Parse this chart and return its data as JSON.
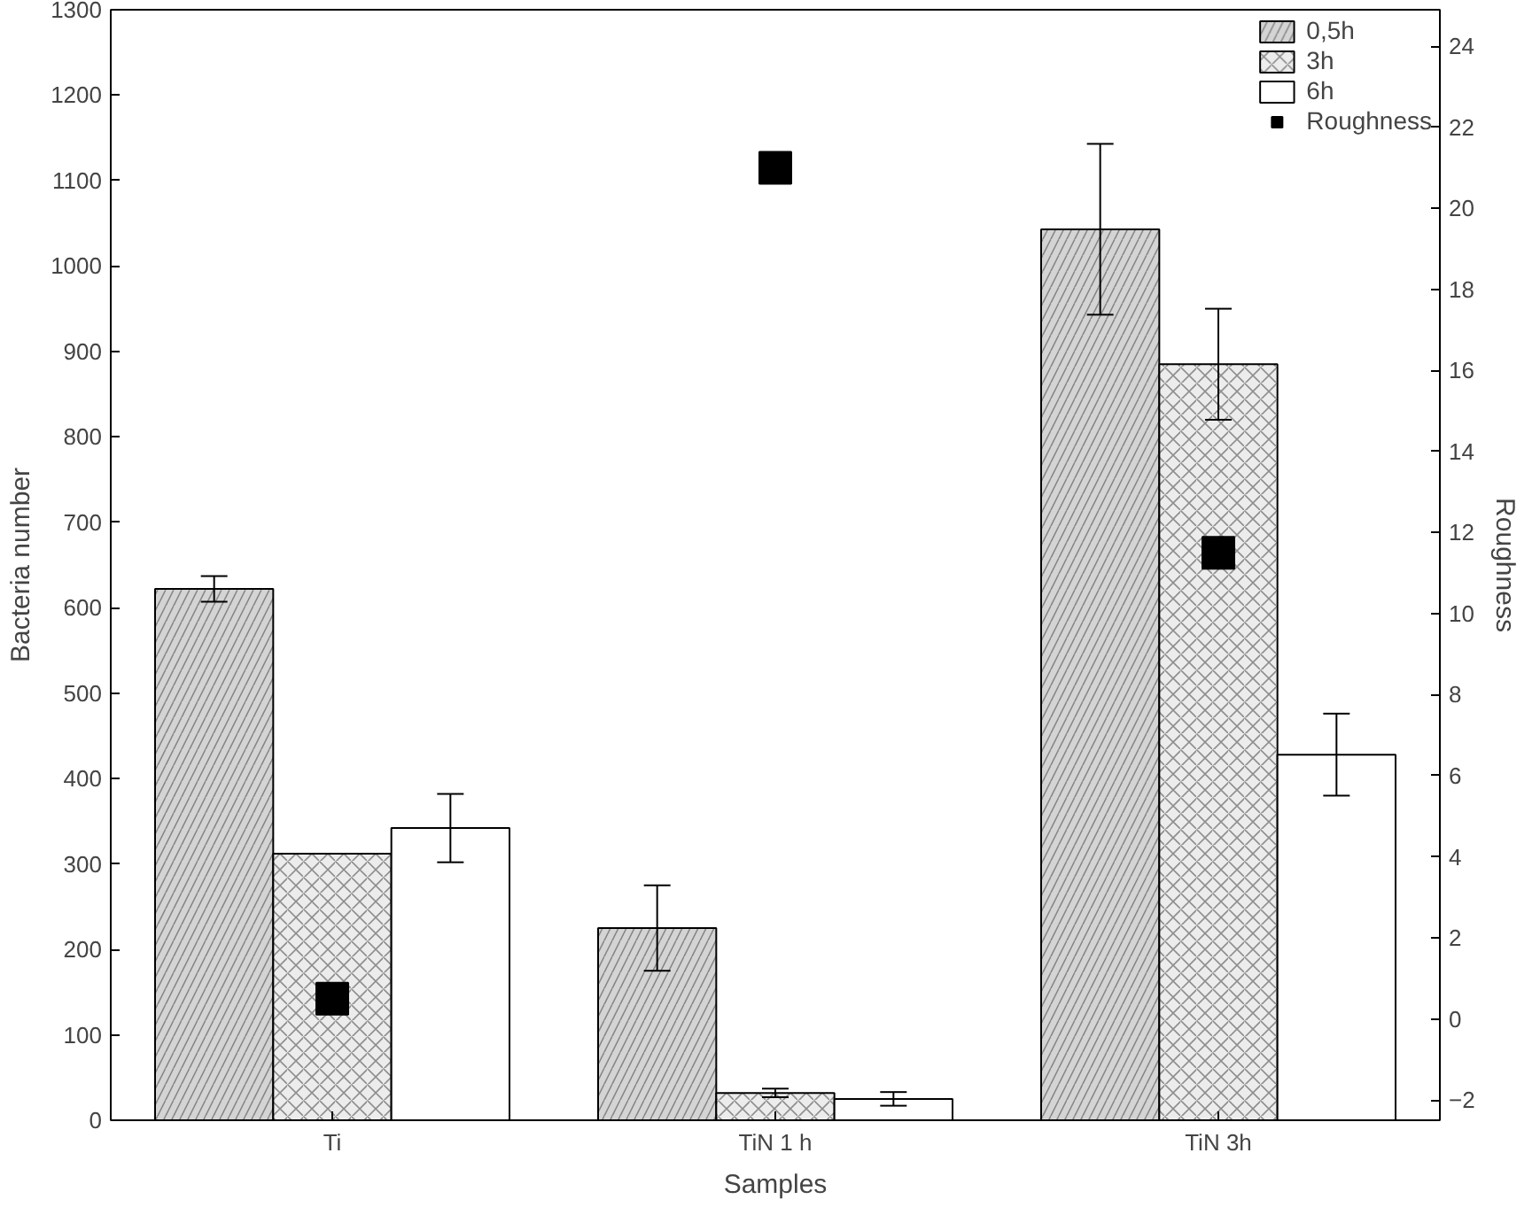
{
  "chart_data": {
    "type": "bar",
    "xlabel": "Samples",
    "ylabel": "Bacteria number",
    "y2label": "Roughness",
    "categories": [
      "Ti",
      "TiN 1 h",
      "TiN 3h"
    ],
    "series": [
      {
        "name": "0,5h",
        "color": "#d4d4d4",
        "values": [
          622,
          225,
          1043
        ],
        "errors": [
          15,
          50,
          100
        ]
      },
      {
        "name": "3h",
        "color": "#ececec",
        "values": [
          312,
          32,
          885
        ],
        "errors": [
          null,
          5,
          65
        ]
      },
      {
        "name": "6h",
        "color": "#ffffff",
        "values": [
          342,
          25,
          428
        ],
        "errors": [
          40,
          8,
          48
        ]
      },
      {
        "name": "Roughness",
        "type": "scatter",
        "axis": "y2",
        "marker": "square",
        "color": "#000000",
        "values": [
          0.5,
          21,
          11.5
        ]
      }
    ],
    "ylim": [
      0,
      1300
    ],
    "yticks": [
      0,
      100,
      200,
      300,
      400,
      500,
      600,
      700,
      800,
      900,
      1000,
      1100,
      1200,
      1300
    ],
    "y2lim": [
      -2.5,
      24.9
    ],
    "y2ticks": [
      -2,
      0,
      2,
      4,
      6,
      8,
      10,
      12,
      14,
      16,
      18,
      20,
      22,
      24
    ],
    "grid": false,
    "legend": "top right"
  }
}
